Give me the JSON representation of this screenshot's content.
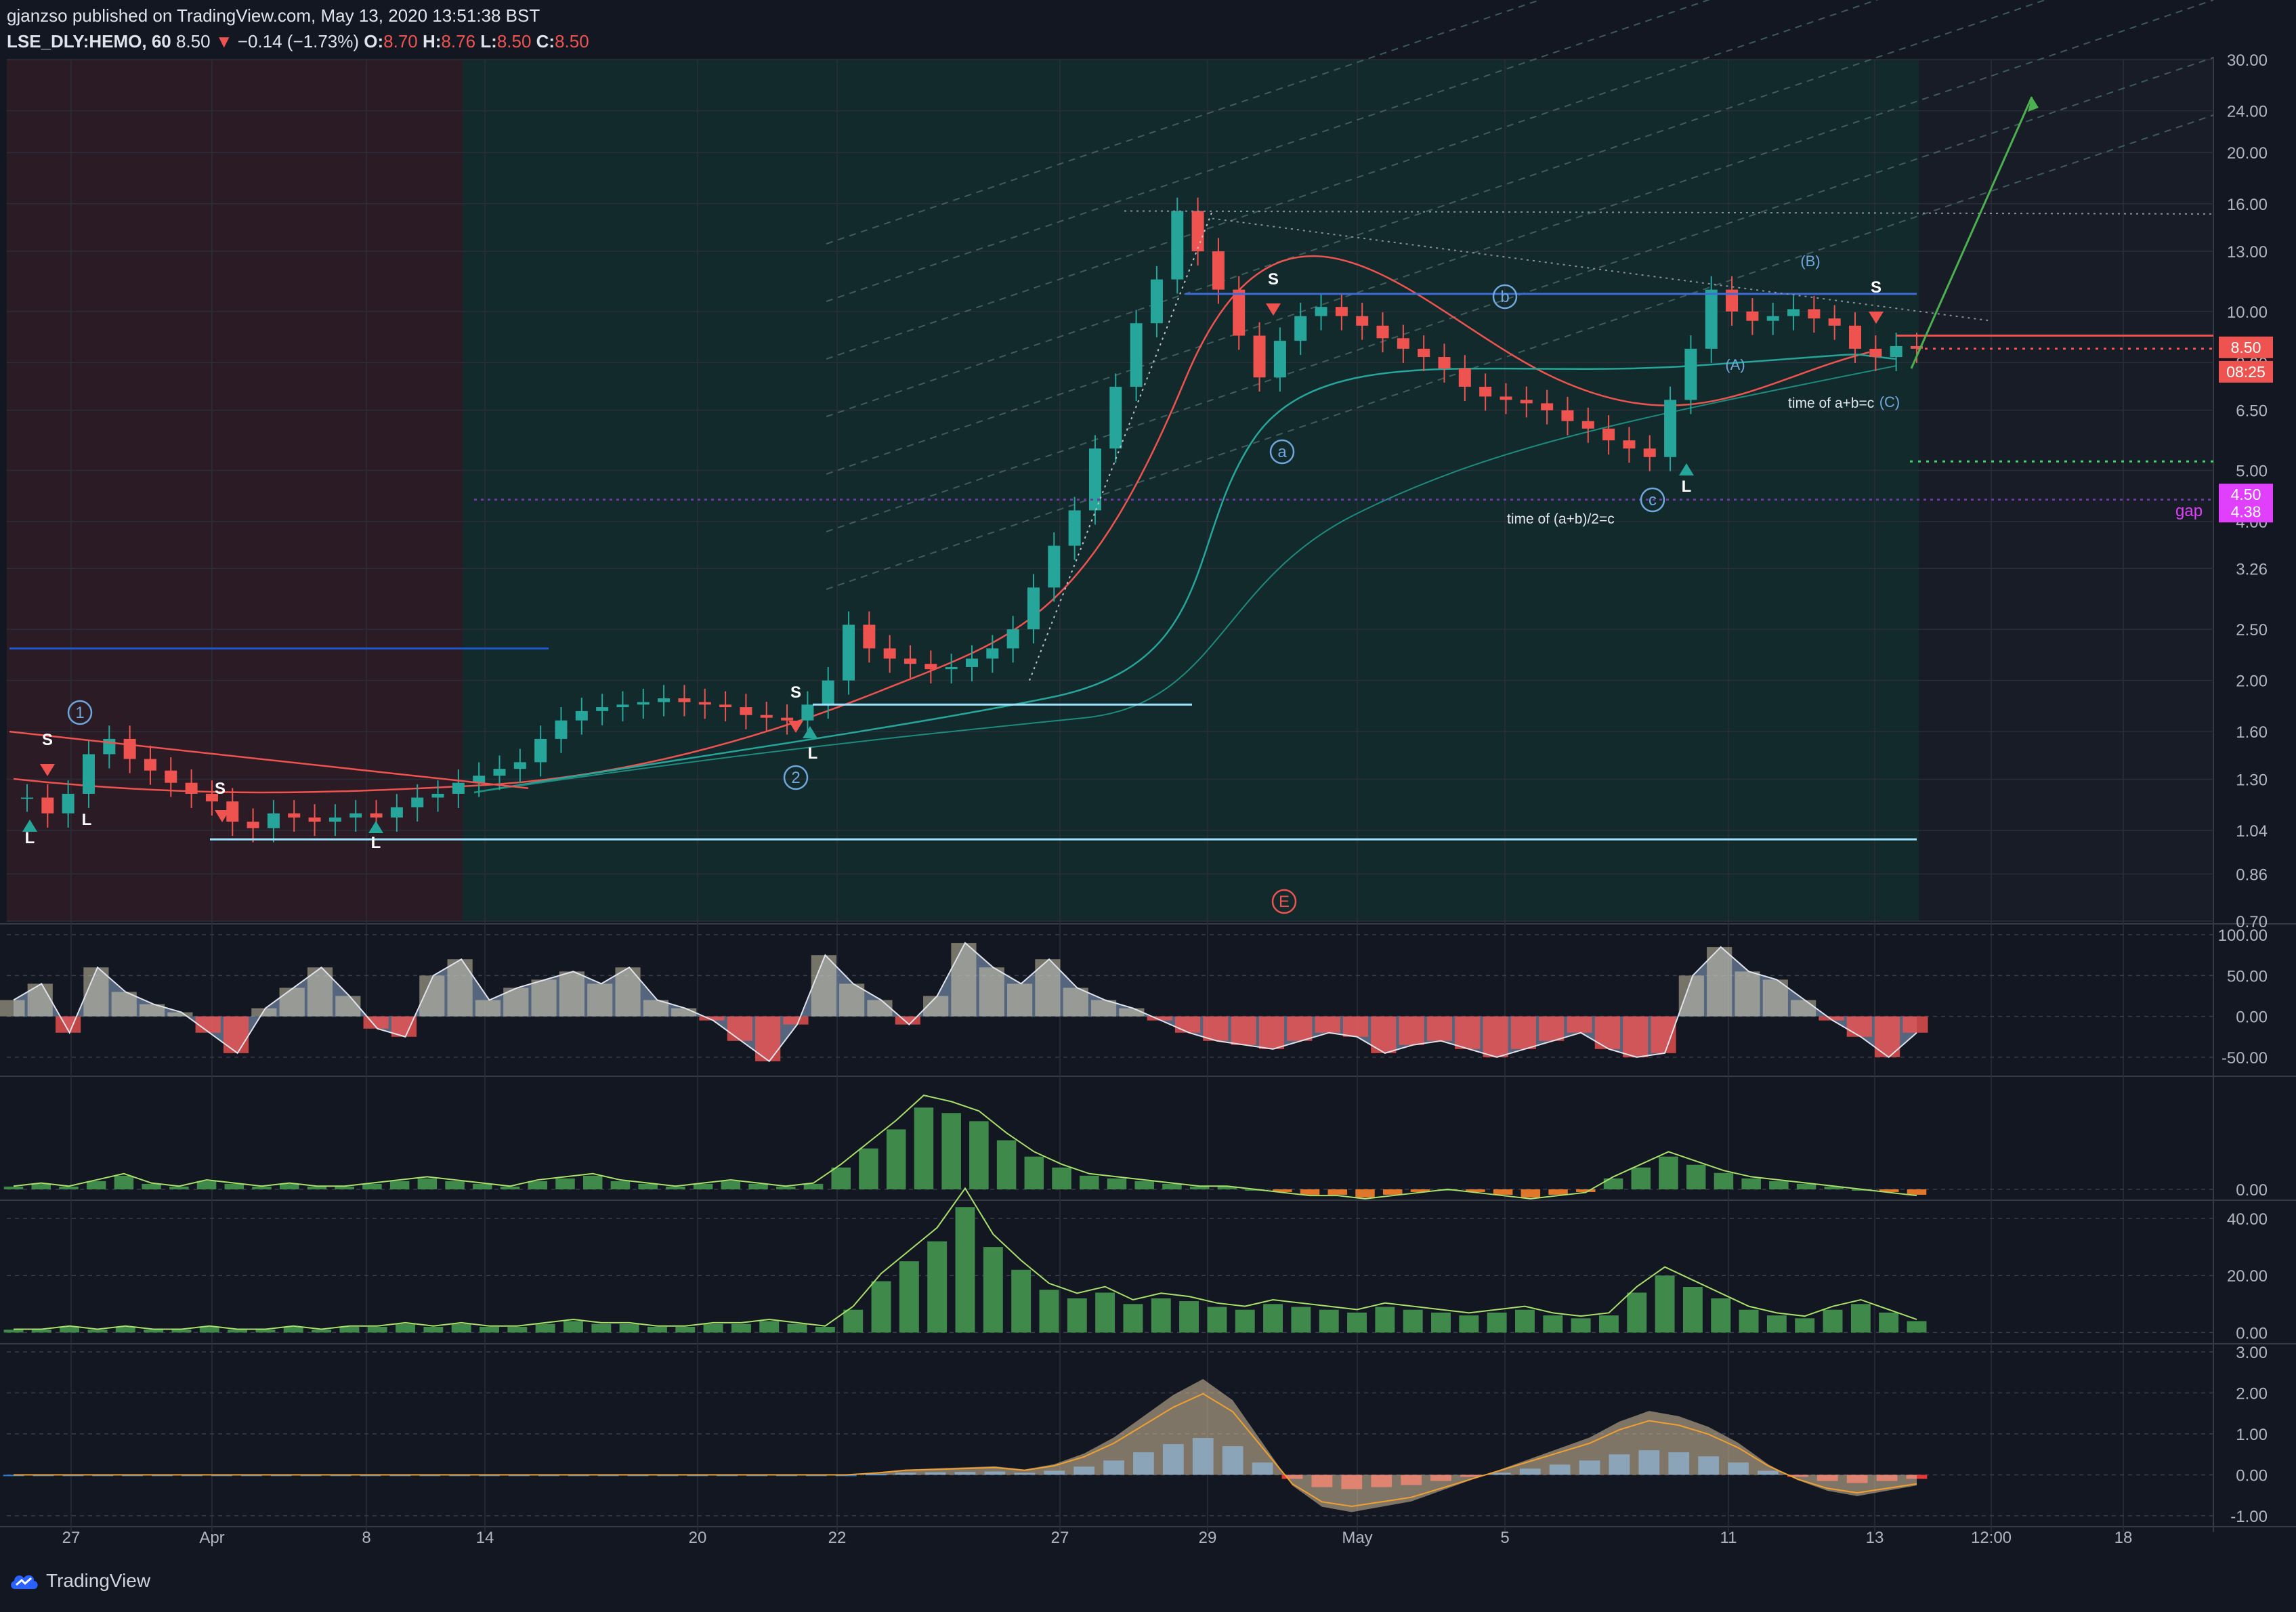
{
  "header": {
    "publisher": "gjanzso published on TradingView.com, May 13, 2020 13:51:38 BST",
    "symbol": "LSE_DLY:HEMO, 60",
    "last": "8.50",
    "change": "−0.14 (−1.73%)",
    "open_label": "O:",
    "open": "8.70",
    "high_label": "H:",
    "high": "8.76",
    "low_label": "L:",
    "low": "8.50",
    "close_label": "C:",
    "close": "8.50"
  },
  "brand": {
    "name": "TradingView"
  },
  "colors": {
    "bg": "#131722",
    "up": "#26a69a",
    "down": "#ef5350",
    "session_red": "#2b1b24",
    "session_green": "#132a2c",
    "grid": "#2a2e39",
    "accent_magenta": "#e040fb"
  },
  "chart_data": [
    {
      "type": "candlestick",
      "scale": "log",
      "ylim": [
        0.7,
        30
      ],
      "y_ticks": [
        "30.00",
        "24.00",
        "20.00",
        "16.00",
        "13.00",
        "10.00",
        "8.00",
        "6.50",
        "5.00",
        "4.00",
        "3.26",
        "2.50",
        "2.00",
        "1.60",
        "1.30",
        "1.04",
        "0.86",
        "0.70"
      ],
      "x_ticks": [
        "27",
        "Apr",
        "8",
        "14",
        "20",
        "22",
        "27",
        "29",
        "May",
        "5",
        "11",
        "13",
        "12:00",
        "18"
      ],
      "price_labels": [
        {
          "text": "8.50",
          "color": "#ef5350"
        },
        {
          "text": "08:25",
          "color": "#ef5350"
        },
        {
          "text": "4.50",
          "color": "#e040fb"
        },
        {
          "text": "4.38",
          "color": "#e040fb"
        }
      ],
      "horizontal_levels": [
        {
          "price": 1.0,
          "color": "#9fe3ff"
        },
        {
          "price": 1.8,
          "color": "#9fe3ff"
        },
        {
          "price": 10.8,
          "color": "#3f6bd8"
        },
        {
          "price": 9.0,
          "color": "#ef5350"
        },
        {
          "price": 5.2,
          "color": "#43d36a"
        },
        {
          "price": 4.4,
          "color": "#6a3aa0"
        },
        {
          "price": 2.3,
          "color": "#1e56c8"
        }
      ],
      "annotations": [
        "S",
        "L",
        "S",
        "L",
        "S",
        "L",
        "S",
        "L",
        "S",
        "L",
        "S",
        "L",
        "1",
        "2",
        "a",
        "b",
        "c",
        "(A)",
        "(B)",
        "(C)",
        "E",
        "time of a+b=c",
        "time of (a+b)/2=c",
        "gap"
      ],
      "close_series": [
        1.2,
        1.12,
        1.22,
        1.45,
        1.55,
        1.42,
        1.35,
        1.28,
        1.22,
        1.18,
        1.08,
        1.05,
        1.12,
        1.1,
        1.08,
        1.1,
        1.12,
        1.1,
        1.15,
        1.2,
        1.22,
        1.28,
        1.32,
        1.36,
        1.4,
        1.55,
        1.68,
        1.75,
        1.78,
        1.8,
        1.82,
        1.85,
        1.82,
        1.8,
        1.78,
        1.72,
        1.7,
        1.68,
        1.8,
        2.0,
        2.55,
        2.3,
        2.2,
        2.15,
        2.1,
        2.12,
        2.2,
        2.3,
        2.5,
        3.0,
        3.6,
        4.2,
        5.5,
        7.2,
        9.5,
        11.5,
        15.5,
        13.0,
        11.0,
        9.0,
        7.5,
        8.8,
        9.8,
        10.2,
        9.8,
        9.4,
        8.9,
        8.5,
        8.2,
        7.8,
        7.2,
        6.9,
        6.8,
        6.7,
        6.5,
        6.2,
        6.0,
        5.7,
        5.5,
        5.3,
        6.8,
        8.5,
        11.0,
        10.0,
        9.6,
        9.8,
        10.1,
        9.7,
        9.4,
        8.5,
        8.2,
        8.6,
        8.5
      ]
    },
    {
      "type": "area",
      "name": "",
      "y_ticks": [
        "100.00",
        "50.00",
        "0.00",
        "-50.00"
      ],
      "ylim": [
        -70,
        110
      ],
      "values": [
        20,
        40,
        -20,
        60,
        30,
        15,
        5,
        -20,
        -45,
        10,
        35,
        60,
        25,
        -15,
        -25,
        50,
        70,
        20,
        35,
        45,
        55,
        40,
        60,
        20,
        10,
        -5,
        -30,
        -55,
        -10,
        75,
        40,
        20,
        -10,
        25,
        90,
        60,
        40,
        70,
        35,
        20,
        10,
        -5,
        -20,
        -30,
        -35,
        -40,
        -30,
        -20,
        -25,
        -45,
        -35,
        -30,
        -40,
        -50,
        -40,
        -30,
        -20,
        -40,
        -50,
        -45,
        50,
        85,
        55,
        45,
        20,
        -5,
        -25,
        -50,
        -20
      ]
    },
    {
      "type": "bar",
      "name": "",
      "y_ticks": [
        "0.00"
      ],
      "ylim": [
        -3,
        40
      ],
      "values": [
        1,
        2,
        1,
        3,
        5,
        2,
        1,
        3,
        2,
        1,
        2,
        1,
        1,
        2,
        3,
        4,
        3,
        2,
        1,
        3,
        4,
        5,
        3,
        2,
        1,
        2,
        3,
        2,
        1,
        2,
        8,
        15,
        22,
        30,
        28,
        25,
        18,
        12,
        8,
        5,
        4,
        3,
        2,
        1,
        1,
        0,
        -1,
        -2,
        -2,
        -3,
        -2,
        -1,
        0,
        -1,
        -2,
        -3,
        -2,
        -1,
        4,
        8,
        12,
        9,
        6,
        4,
        3,
        2,
        1,
        0,
        -1,
        -2
      ]
    },
    {
      "type": "bar",
      "name": "",
      "y_ticks": [
        "40.00",
        "20.00",
        "0.00"
      ],
      "ylim": [
        -3,
        45
      ],
      "values": [
        1,
        1,
        2,
        1,
        2,
        1,
        1,
        2,
        1,
        1,
        2,
        1,
        2,
        2,
        3,
        2,
        3,
        2,
        2,
        3,
        4,
        3,
        3,
        2,
        2,
        3,
        3,
        4,
        3,
        2,
        8,
        18,
        25,
        32,
        44,
        30,
        22,
        15,
        12,
        14,
        10,
        12,
        11,
        9,
        8,
        10,
        9,
        8,
        7,
        9,
        8,
        7,
        6,
        7,
        8,
        6,
        5,
        6,
        14,
        20,
        16,
        12,
        8,
        6,
        5,
        8,
        10,
        7,
        4
      ]
    },
    {
      "type": "bar",
      "name": "",
      "y_ticks": [
        "3.00",
        "2.00",
        "1.00",
        "0.00",
        "-1.00"
      ],
      "ylim": [
        -1.2,
        3.1
      ],
      "values": [
        0,
        0,
        0,
        0,
        0,
        0,
        0,
        0,
        0,
        0,
        0,
        0,
        0,
        0,
        0,
        0,
        0,
        0,
        0,
        0,
        0,
        0,
        0,
        0,
        0,
        0,
        0,
        0,
        0,
        0.02,
        0.05,
        0.06,
        0.07,
        0.08,
        0.05,
        0.1,
        0.2,
        0.35,
        0.55,
        0.75,
        0.9,
        0.7,
        0.3,
        -0.1,
        -0.3,
        -0.35,
        -0.3,
        -0.25,
        -0.15,
        -0.05,
        0.05,
        0.15,
        0.25,
        0.35,
        0.5,
        0.6,
        0.55,
        0.45,
        0.3,
        0.1,
        -0.05,
        -0.15,
        -0.2,
        -0.15,
        -0.1
      ]
    }
  ]
}
